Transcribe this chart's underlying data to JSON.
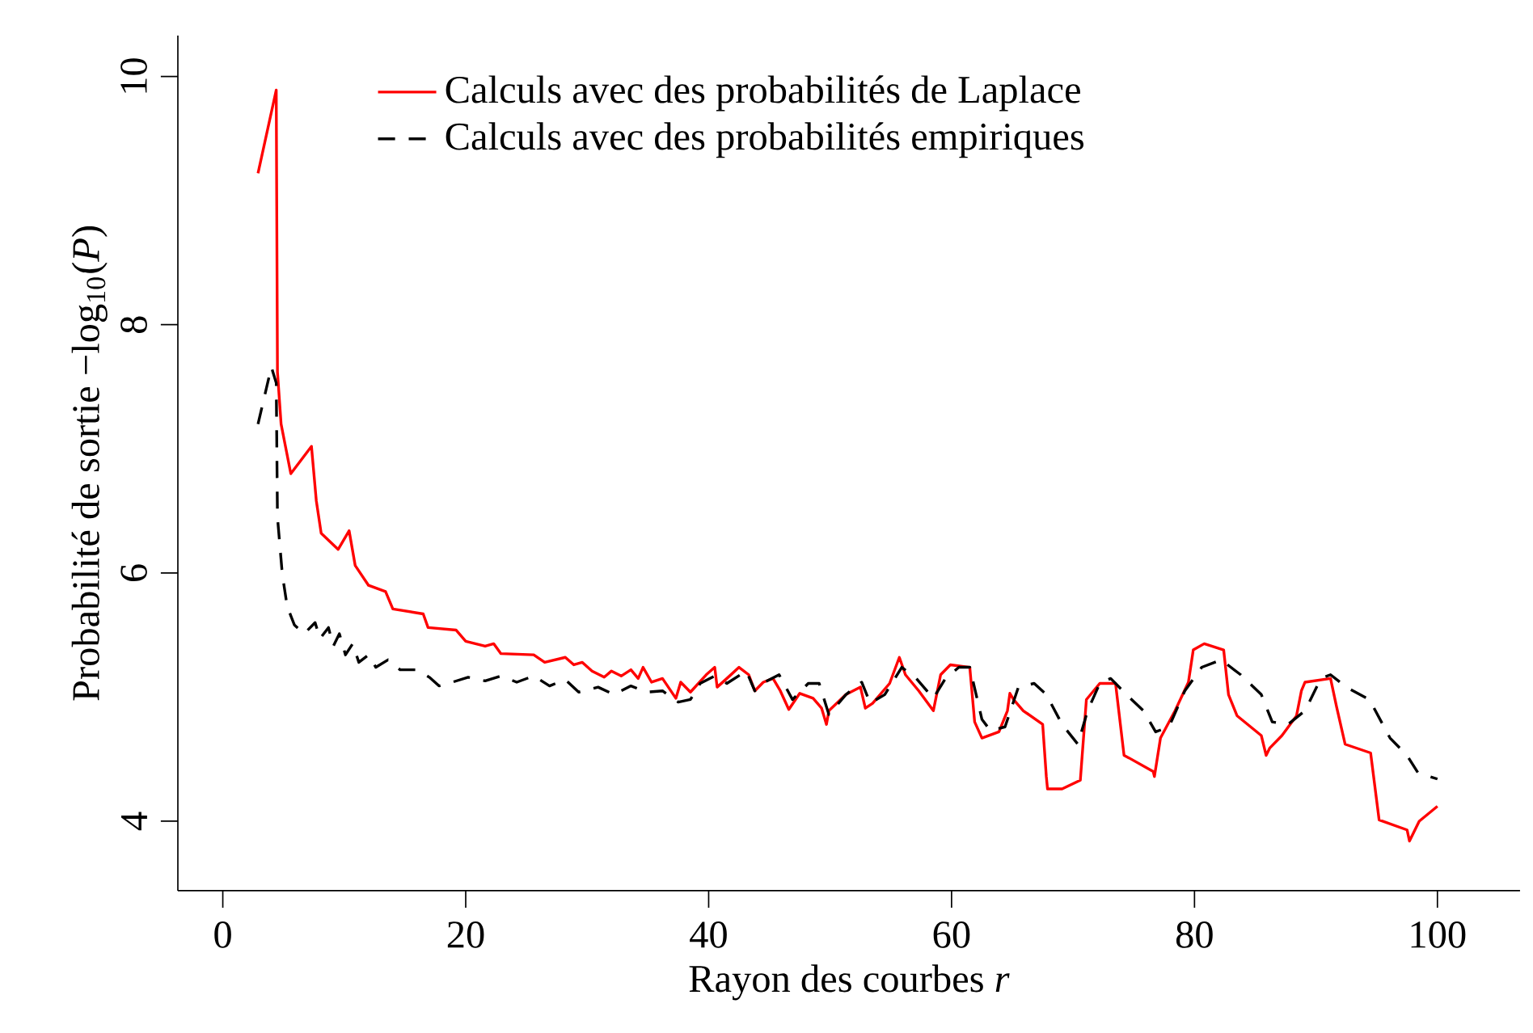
{
  "chart_data": {
    "type": "line",
    "xlabel": "Rayon des courbes *r*",
    "ylabel": "Probabilité de sortie −log$_{10}$(*P*)",
    "xlim": [
      -3.7,
      106.8
    ],
    "ylim": [
      3.44,
      10.33
    ],
    "xticks": [
      0,
      20,
      40,
      60,
      80,
      100
    ],
    "yticks": [
      4,
      6,
      8,
      10
    ],
    "grid": false,
    "legend": "top",
    "marker": "none",
    "series": [
      {
        "name": "Calculs avec des probabilités de Laplace",
        "color": "#ff0000",
        "line_style": "solid",
        "x": [
          2.9,
          4.4,
          4.5,
          4.8,
          5.6,
          7.3,
          7.7,
          8.1,
          9.5,
          10.4,
          10.9,
          12.0,
          13.4,
          14.0,
          16.5,
          16.9,
          19.2,
          20.0,
          21.6,
          22.3,
          22.9,
          25.6,
          26.5,
          28.2,
          28.9,
          29.6,
          30.4,
          31.4,
          32.0,
          32.8,
          33.6,
          34.2,
          34.6,
          35.3,
          36.2,
          37.3,
          37.7,
          38.5,
          39.8,
          40.5,
          40.7,
          41.5,
          42.5,
          43.3,
          43.8,
          44.5,
          45.3,
          45.9,
          46.6,
          47.5,
          48.6,
          49.3,
          49.7,
          49.9,
          51.3,
          52.5,
          52.9,
          53.5,
          54.9,
          55.7,
          56.2,
          57.3,
          58.5,
          59.1,
          59.9,
          61.5,
          61.9,
          62.5,
          63.9,
          64.6,
          64.8,
          65.1,
          65.9,
          67.5,
          67.8,
          67.9,
          69.1,
          70.6,
          71.1,
          72.2,
          73.5,
          74.2,
          74.6,
          76.6,
          76.7,
          77.2,
          78.4,
          79.5,
          79.9,
          80.8,
          82.4,
          82.8,
          83.5,
          85.5,
          85.9,
          86.2,
          87.2,
          88.4,
          88.8,
          89.1,
          91.2,
          91.7,
          92.4,
          94.5,
          95.2,
          97.5,
          97.7,
          98.5,
          100
        ],
        "values": [
          9.22,
          9.89,
          7.62,
          7.2,
          6.8,
          7.02,
          6.58,
          6.32,
          6.19,
          6.34,
          6.06,
          5.9,
          5.85,
          5.71,
          5.67,
          5.56,
          5.54,
          5.45,
          5.41,
          5.43,
          5.35,
          5.34,
          5.28,
          5.32,
          5.26,
          5.28,
          5.21,
          5.16,
          5.21,
          5.17,
          5.22,
          5.15,
          5.24,
          5.12,
          5.15,
          4.99,
          5.12,
          5.04,
          5.18,
          5.24,
          5.08,
          5.15,
          5.24,
          5.18,
          5.05,
          5.12,
          5.15,
          5.05,
          4.9,
          5.03,
          4.99,
          4.91,
          4.78,
          4.89,
          5.02,
          5.08,
          4.91,
          4.95,
          5.11,
          5.32,
          5.18,
          5.05,
          4.89,
          5.18,
          5.26,
          5.24,
          4.8,
          4.67,
          4.72,
          4.89,
          5.03,
          4.98,
          4.89,
          4.78,
          4.36,
          4.26,
          4.26,
          4.33,
          4.98,
          5.11,
          5.11,
          4.53,
          4.51,
          4.4,
          4.36,
          4.67,
          4.89,
          5.12,
          5.38,
          5.43,
          5.38,
          5.02,
          4.85,
          4.69,
          4.53,
          4.59,
          4.69,
          4.85,
          5.05,
          5.12,
          5.15,
          4.92,
          4.62,
          4.55,
          4.01,
          3.93,
          3.84,
          4.0,
          4.12
        ]
      },
      {
        "name": "Calculs avec des probabilités empiriques",
        "color": "#000000",
        "line_style": "dashed",
        "x": [
          2.9,
          4.0,
          4.4,
          4.5,
          4.9,
          5.3,
          5.9,
          6.7,
          7.6,
          8.0,
          8.7,
          9.1,
          9.6,
          10.1,
          10.7,
          11.2,
          12.0,
          12.6,
          13.6,
          14.6,
          16.0,
          17.0,
          17.8,
          18.9,
          20.2,
          21.6,
          22.9,
          24.2,
          25.6,
          26.9,
          28.2,
          29.3,
          30.9,
          32.2,
          33.6,
          34.9,
          36.2,
          37.5,
          38.5,
          39.3,
          40.5,
          41.5,
          43.1,
          43.8,
          44.6,
          45.8,
          46.9,
          48.2,
          49.1,
          49.9,
          51.3,
          52.6,
          53.3,
          54.5,
          55.9,
          57.1,
          58.5,
          59.5,
          60.6,
          61.5,
          62.5,
          63.2,
          64.4,
          65.5,
          66.8,
          67.8,
          69.1,
          70.4,
          71.2,
          72.2,
          73.1,
          74.4,
          75.8,
          76.8,
          77.9,
          79.2,
          80.6,
          82.2,
          83.8,
          85.5,
          86.4,
          87.7,
          89.1,
          90.4,
          91.2,
          92.5,
          94.4,
          96.1,
          97.5,
          98.4,
          100
        ],
        "values": [
          7.2,
          7.66,
          7.53,
          6.45,
          5.99,
          5.73,
          5.58,
          5.51,
          5.6,
          5.47,
          5.56,
          5.41,
          5.51,
          5.34,
          5.43,
          5.28,
          5.34,
          5.24,
          5.3,
          5.22,
          5.22,
          5.16,
          5.09,
          5.12,
          5.16,
          5.13,
          5.17,
          5.12,
          5.17,
          5.09,
          5.14,
          5.04,
          5.08,
          5.02,
          5.09,
          5.04,
          5.05,
          4.96,
          4.98,
          5.11,
          5.17,
          5.11,
          5.21,
          5.05,
          5.12,
          5.18,
          4.98,
          5.11,
          5.11,
          4.86,
          5.02,
          5.12,
          4.95,
          5.02,
          5.24,
          5.15,
          4.99,
          5.15,
          5.24,
          5.24,
          4.82,
          4.73,
          4.76,
          5.08,
          5.11,
          5.02,
          4.78,
          4.62,
          4.89,
          5.11,
          5.15,
          5.02,
          4.89,
          4.72,
          4.76,
          5.05,
          5.24,
          5.3,
          5.18,
          5.02,
          4.8,
          4.78,
          4.89,
          5.15,
          5.18,
          5.08,
          4.98,
          4.67,
          4.53,
          4.39,
          4.34
        ]
      }
    ]
  }
}
